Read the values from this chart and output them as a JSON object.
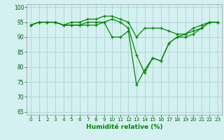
{
  "xlabel": "Humidité relative (%)",
  "background_color": "#d4f0f0",
  "grid_color": "#b0d8d8",
  "line_color": "#008800",
  "xlim": [
    -0.5,
    23.5
  ],
  "ylim": [
    64,
    101
  ],
  "yticks": [
    65,
    70,
    75,
    80,
    85,
    90,
    95,
    100
  ],
  "xticks": [
    0,
    1,
    2,
    3,
    4,
    5,
    6,
    7,
    8,
    9,
    10,
    11,
    12,
    13,
    14,
    15,
    16,
    17,
    18,
    19,
    20,
    21,
    22,
    23
  ],
  "series": [
    [
      94,
      95,
      95,
      95,
      94,
      95,
      95,
      96,
      96,
      97,
      97,
      96,
      95,
      90,
      93,
      93,
      93,
      92,
      91,
      91,
      93,
      94,
      95,
      95
    ],
    [
      94,
      95,
      95,
      95,
      94,
      94,
      94,
      95,
      95,
      95,
      96,
      95,
      93,
      84,
      78,
      83,
      82,
      88,
      90,
      91,
      92,
      93,
      95,
      95
    ],
    [
      94,
      95,
      95,
      95,
      94,
      94,
      94,
      94,
      94,
      95,
      90,
      90,
      92,
      74,
      79,
      83,
      82,
      88,
      90,
      90,
      91,
      93,
      95,
      95
    ]
  ]
}
